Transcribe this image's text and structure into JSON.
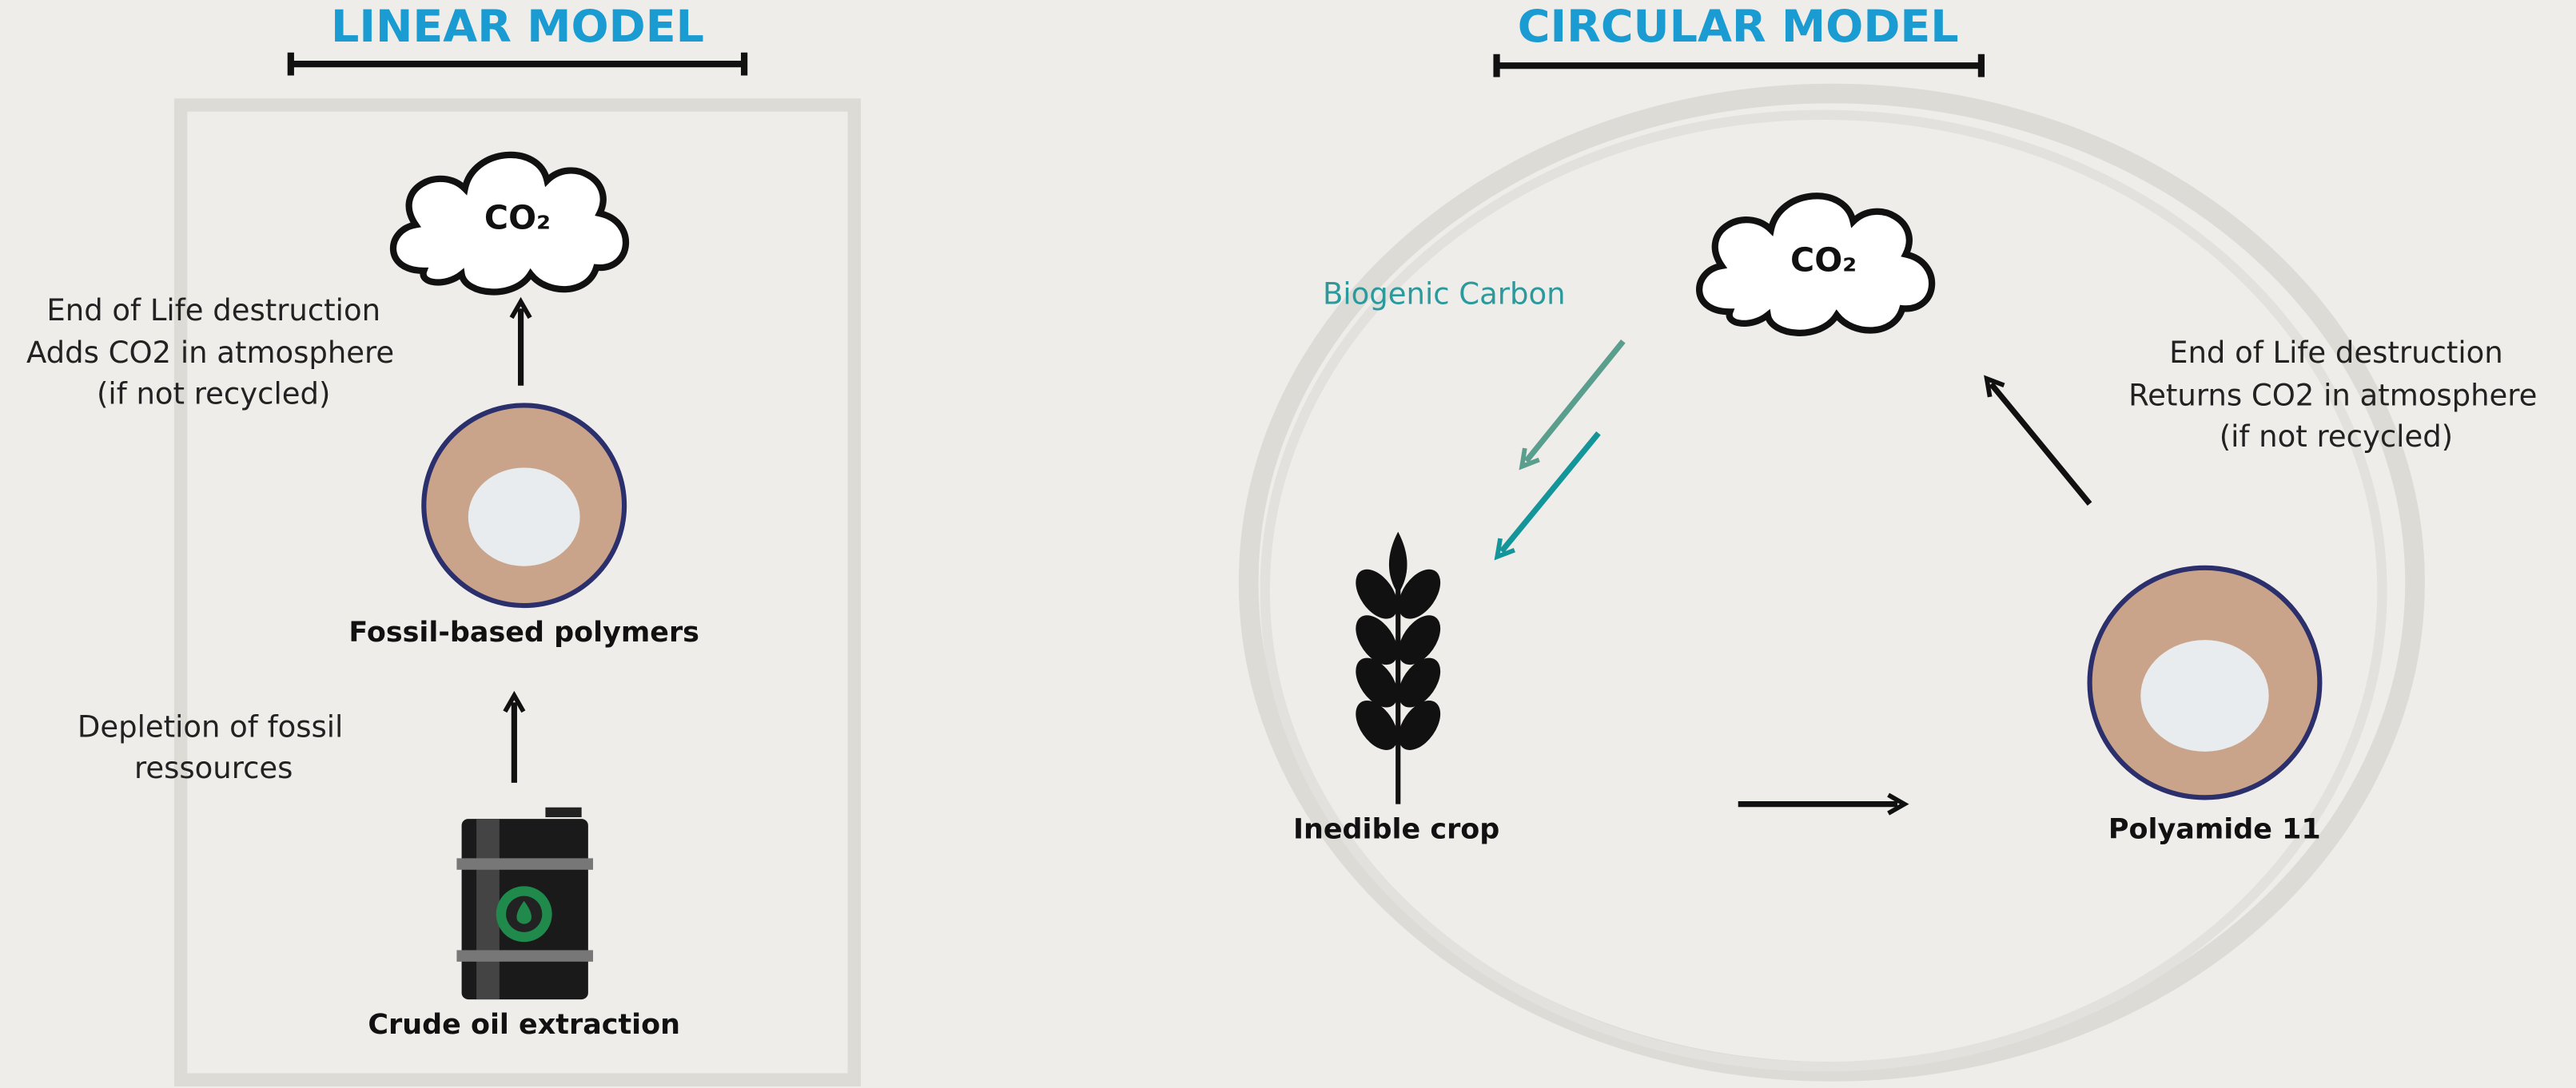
{
  "linear_model": {
    "title": "LINEAR MODEL",
    "cloud_label": "CO₂",
    "nodes": [
      {
        "label": "Fossil-based polymers"
      },
      {
        "label": "Crude oil extraction"
      }
    ],
    "annotations": [
      [
        "End of Life destruction",
        "Adds CO2 in atmosphere",
        "(if not recycled)"
      ],
      [
        "Depletion of fossil",
        "ressources"
      ]
    ]
  },
  "circular_model": {
    "title": "CIRCULAR MODEL",
    "cloud_label": "CO₂",
    "carbon_label": "Biogenic Carbon",
    "nodes": [
      {
        "label": "Inedible crop"
      },
      {
        "label": "Polyamide 11"
      }
    ],
    "annotations": [
      [
        "End of Life destruction",
        "Returns CO2 in atmosphere",
        "(if not recycled)"
      ]
    ]
  }
}
